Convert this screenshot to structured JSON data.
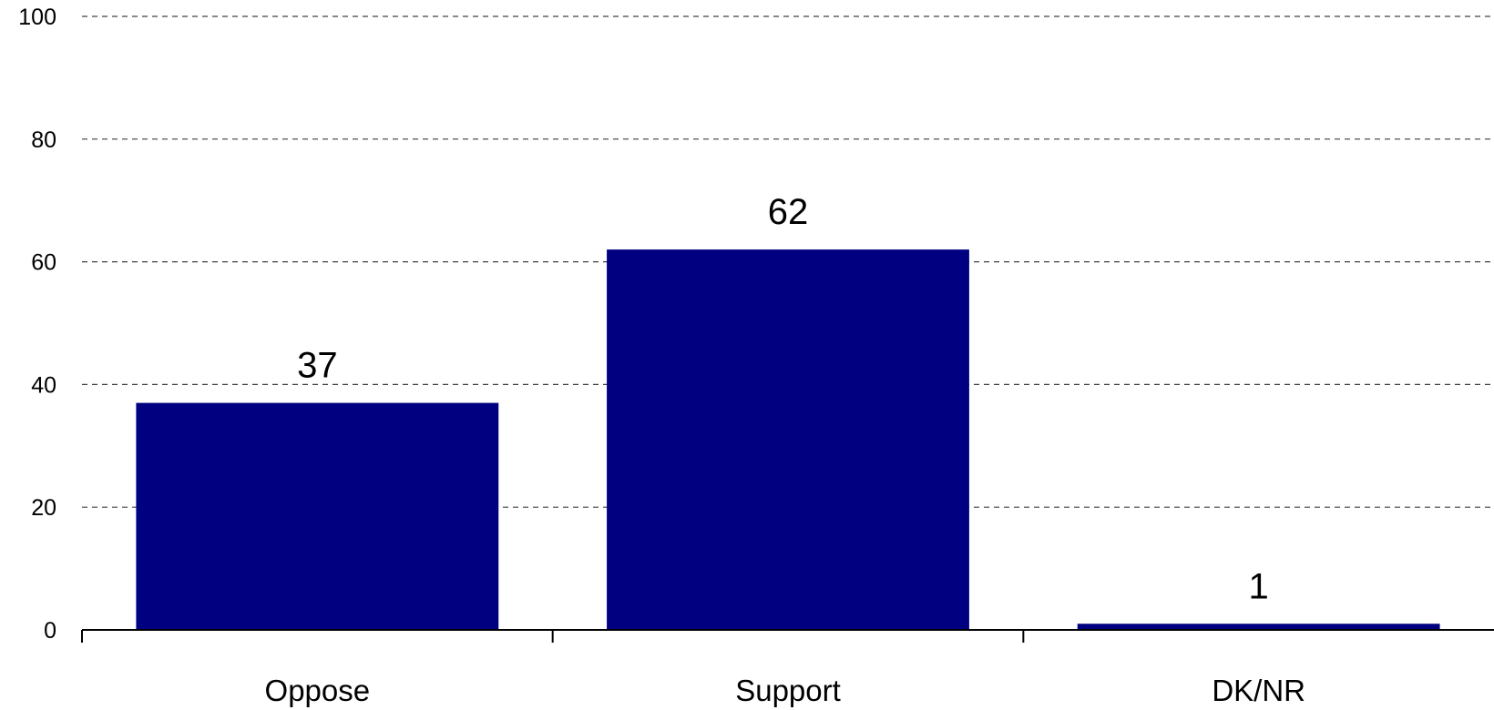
{
  "chart_data": {
    "type": "bar",
    "categories": [
      "Oppose",
      "Support",
      "DK/NR"
    ],
    "values": [
      37,
      62,
      1
    ],
    "data_labels": [
      "37",
      "62",
      "1"
    ],
    "title": "",
    "xlabel": "",
    "ylabel": "",
    "ylim": [
      0,
      100
    ],
    "yticks": [
      0,
      20,
      40,
      60,
      80,
      100
    ],
    "grid": true,
    "legend": "none",
    "bar_color": "#000080"
  }
}
